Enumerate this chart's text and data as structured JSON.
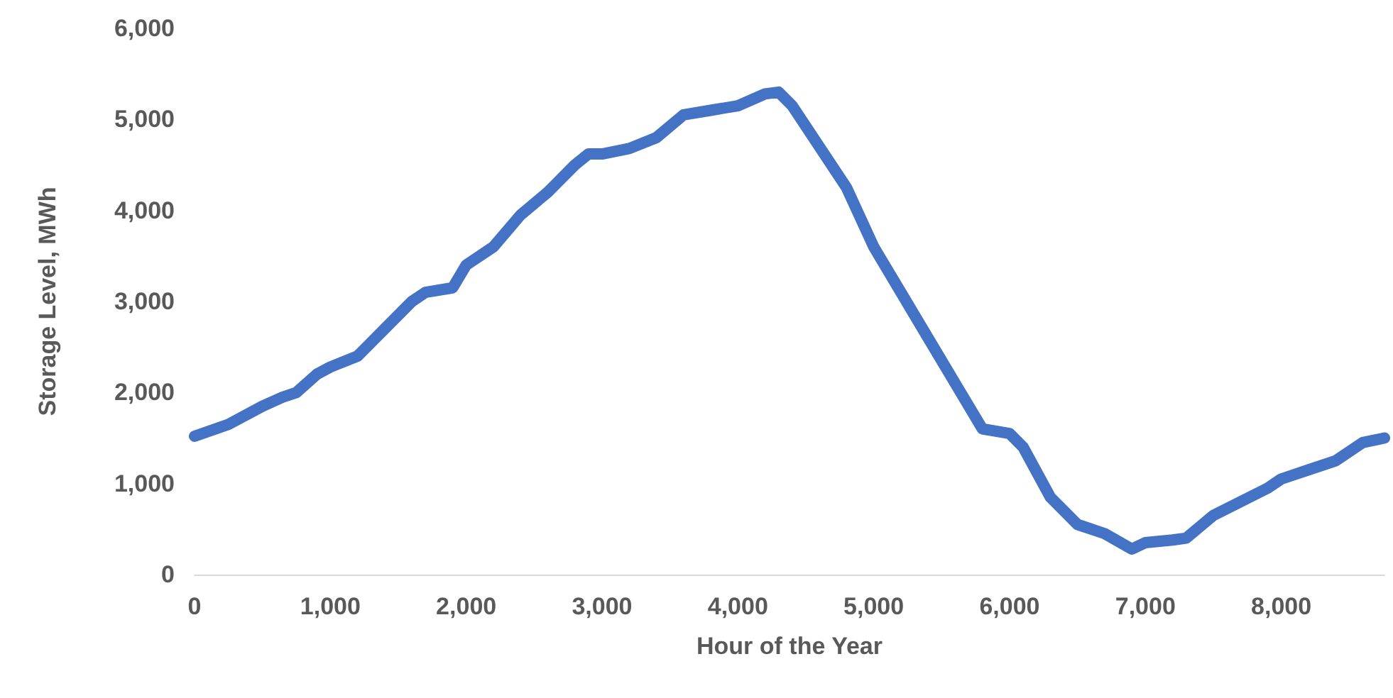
{
  "chart_data": {
    "type": "line",
    "xlabel": "Hour of the Year",
    "ylabel": "Storage Level, MWh",
    "x": [
      0,
      250,
      500,
      650,
      750,
      900,
      1000,
      1200,
      1400,
      1600,
      1700,
      1900,
      2000,
      2200,
      2400,
      2600,
      2800,
      2900,
      3000,
      3200,
      3400,
      3600,
      3800,
      4000,
      4200,
      4300,
      4400,
      4600,
      4800,
      5000,
      5200,
      5400,
      5600,
      5800,
      6000,
      6100,
      6300,
      6500,
      6700,
      6900,
      7000,
      7200,
      7300,
      7500,
      7700,
      7900,
      8000,
      8200,
      8400,
      8600,
      8760
    ],
    "series": [
      {
        "color": "#4472c4",
        "values": [
          1520,
          1650,
          1850,
          1950,
          2000,
          2200,
          2280,
          2400,
          2700,
          3000,
          3100,
          3150,
          3400,
          3600,
          3950,
          4200,
          4500,
          4620,
          4620,
          4680,
          4800,
          5050,
          5100,
          5150,
          5280,
          5300,
          5150,
          4700,
          4250,
          3600,
          3100,
          2600,
          2100,
          1600,
          1550,
          1400,
          850,
          550,
          450,
          280,
          350,
          380,
          400,
          650,
          800,
          950,
          1050,
          1150,
          1250,
          1450,
          1500
        ]
      }
    ],
    "xlim": [
      0,
      8760
    ],
    "xticks": [
      0,
      {
        "value": 1000,
        "label": "1,000"
      },
      {
        "value": 2000,
        "label": "2,000"
      },
      {
        "value": 3000,
        "label": "3,000"
      },
      {
        "value": 4000,
        "label": "4,000"
      },
      {
        "value": 5000,
        "label": "5,000"
      },
      {
        "value": 6000,
        "label": "6,000"
      },
      {
        "value": 7000,
        "label": "7,000"
      },
      {
        "value": 8000,
        "label": "8,000"
      }
    ],
    "ylim": [
      0,
      6000
    ],
    "yticks": [
      0,
      {
        "value": 1000,
        "label": "1,000"
      },
      {
        "value": 2000,
        "label": "2,000"
      },
      {
        "value": 3000,
        "label": "3,000"
      },
      {
        "value": 4000,
        "label": "4,000"
      },
      {
        "value": 5000,
        "label": "5,000"
      },
      {
        "value": 6000,
        "label": "6,000"
      }
    ],
    "grid": false,
    "line_style": "solid"
  }
}
